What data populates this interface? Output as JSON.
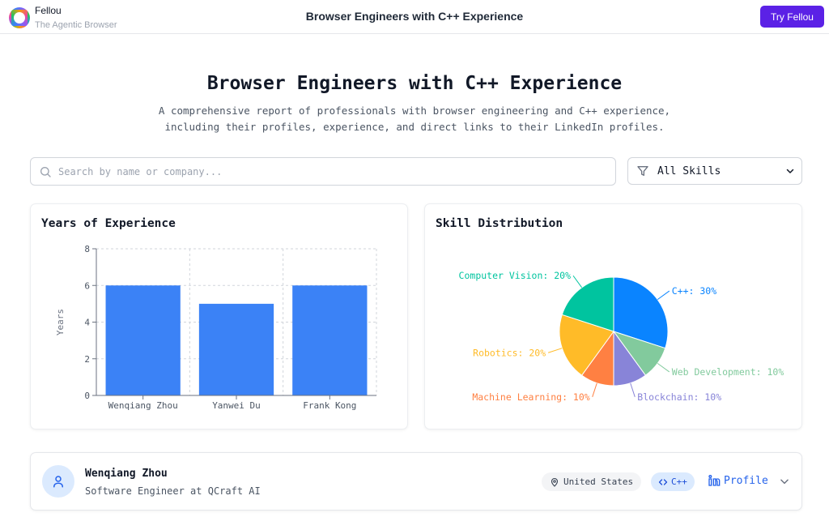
{
  "topbar": {
    "brand_name": "Fellou",
    "brand_tagline": "The Agentic Browser",
    "title": "Browser Engineers with C++ Experience",
    "cta_label": "Try Fellou"
  },
  "header": {
    "title": "Browser Engineers with C++ Experience",
    "subtitle": "A comprehensive report of professionals with browser engineering and C++ experience, including their profiles, experience, and direct links to their LinkedIn profiles."
  },
  "search": {
    "placeholder": "Search by name or company...",
    "value": ""
  },
  "filter": {
    "selected": "All Skills"
  },
  "bar_card": {
    "title": "Years of Experience"
  },
  "pie_card": {
    "title": "Skill Distribution"
  },
  "chart_data": [
    {
      "type": "bar",
      "title": "Years of Experience",
      "categories": [
        "Wenqiang Zhou",
        "Yanwei Du",
        "Frank Kong"
      ],
      "values": [
        6,
        5,
        6
      ],
      "ylabel": "Years",
      "xlabel": "",
      "ylim": [
        0,
        8
      ],
      "yticks": [
        0,
        2,
        4,
        6,
        8
      ],
      "grid": true,
      "color": "#3b82f6"
    },
    {
      "type": "pie",
      "title": "Skill Distribution",
      "slices": [
        {
          "label": "C++",
          "value": 30,
          "color": "#0a84ff"
        },
        {
          "label": "Web Development",
          "value": 10,
          "color": "#82ca9d"
        },
        {
          "label": "Blockchain",
          "value": 10,
          "color": "#8884d8"
        },
        {
          "label": "Machine Learning",
          "value": 10,
          "color": "#ff8042"
        },
        {
          "label": "Robotics",
          "value": 20,
          "color": "#ffbb28"
        },
        {
          "label": "Computer Vision",
          "value": 20,
          "color": "#00c49f"
        }
      ]
    }
  ],
  "person": {
    "name": "Wenqiang Zhou",
    "role": "Software Engineer at QCraft AI",
    "location": "United States",
    "skill": "C++",
    "profile_label": "Profile"
  },
  "colors": {
    "accent": "#5b21e6",
    "bar": "#3b82f6",
    "link": "#2563eb"
  }
}
